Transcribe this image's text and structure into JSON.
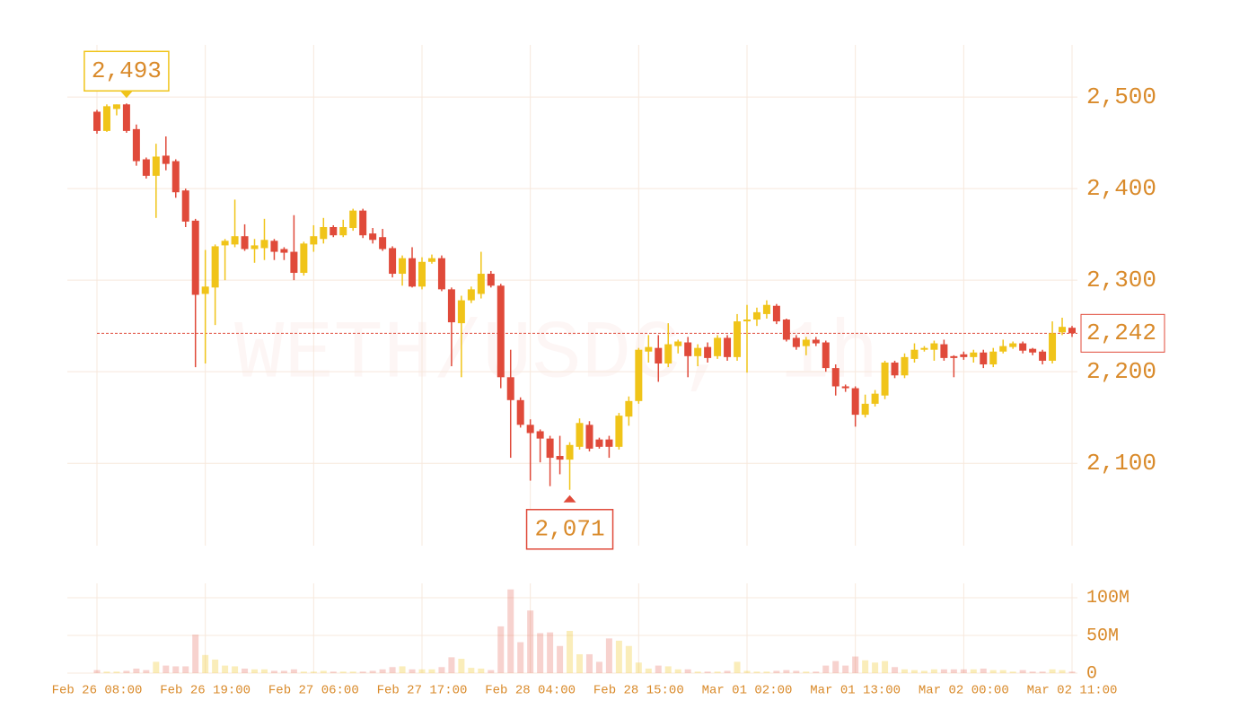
{
  "chart_data": {
    "type": "candlestick",
    "watermark": "WETH/USDC, 1h",
    "up_color": "#f0c419",
    "down_color": "#e04a3a",
    "categories": [
      "Feb 26 08:00",
      null,
      null,
      null,
      null,
      null,
      null,
      null,
      null,
      null,
      null,
      "Feb 26 19:00",
      null,
      null,
      null,
      null,
      null,
      null,
      null,
      null,
      null,
      null,
      "Feb 27 06:00",
      null,
      null,
      null,
      null,
      null,
      null,
      null,
      null,
      null,
      null,
      "Feb 27 17:00",
      null,
      null,
      null,
      null,
      null,
      null,
      null,
      null,
      null,
      null,
      "Feb 28 04:00",
      null,
      null,
      null,
      null,
      null,
      null,
      null,
      null,
      null,
      null,
      "Feb 28 15:00",
      null,
      null,
      null,
      null,
      null,
      null,
      null,
      null,
      null,
      null,
      "Mar 01 02:00",
      null,
      null,
      null,
      null,
      null,
      null,
      null,
      null,
      null,
      null,
      "Mar 01 13:00",
      null,
      null,
      null,
      null,
      null,
      null,
      null,
      null,
      null,
      null,
      "Mar 02 00:00",
      null,
      null,
      null,
      null,
      null,
      null,
      null,
      null,
      null,
      null,
      "Mar 02 11:00"
    ],
    "open": [
      2484,
      2463,
      2487,
      2492,
      2465,
      2432,
      2414,
      2436,
      2430,
      2398,
      2365,
      2285,
      2292,
      2338,
      2339,
      2348,
      2334,
      2335,
      2343,
      2334,
      2331,
      2308,
      2339,
      2345,
      2358,
      2349,
      2357,
      2376,
      2351,
      2347,
      2335,
      2307,
      2324,
      2293,
      2320,
      2324,
      2290,
      2253,
      2278,
      2285,
      2307,
      2294,
      2194,
      2169,
      2142,
      2135,
      2127,
      2108,
      2104,
      2118,
      2142,
      2126,
      2126,
      2118,
      2151,
      2168,
      2222,
      2226,
      2209,
      2228,
      2232,
      2217,
      2227,
      2217,
      2237,
      2216,
      2255,
      2257,
      2263,
      2272,
      2257,
      2237,
      2228,
      2235,
      2232,
      2204,
      2184,
      2182,
      2153,
      2165,
      2174,
      2210,
      2196,
      2214,
      2224,
      2224,
      2230,
      2217,
      2219,
      2216,
      2221,
      2208,
      2222,
      2227,
      2231,
      2225,
      2222,
      2212,
      2243,
      2248
    ],
    "high": [
      2486,
      2492,
      2492,
      2493,
      2470,
      2434,
      2449,
      2457,
      2432,
      2400,
      2367,
      2333,
      2339,
      2345,
      2388,
      2361,
      2345,
      2367,
      2345,
      2336,
      2371,
      2342,
      2360,
      2368,
      2360,
      2366,
      2378,
      2378,
      2357,
      2356,
      2337,
      2327,
      2336,
      2325,
      2328,
      2327,
      2292,
      2283,
      2293,
      2331,
      2310,
      2296,
      2224,
      2172,
      2148,
      2137,
      2130,
      2130,
      2123,
      2149,
      2146,
      2128,
      2130,
      2155,
      2173,
      2226,
      2240,
      2240,
      2253,
      2235,
      2238,
      2230,
      2232,
      2240,
      2240,
      2263,
      2273,
      2270,
      2278,
      2274,
      2258,
      2240,
      2238,
      2238,
      2234,
      2208,
      2186,
      2184,
      2175,
      2180,
      2212,
      2212,
      2220,
      2231,
      2228,
      2234,
      2235,
      2218,
      2222,
      2224,
      2224,
      2226,
      2235,
      2233,
      2233,
      2226,
      2224,
      2255,
      2259,
      2250
    ],
    "low": [
      2460,
      2462,
      2480,
      2461,
      2425,
      2411,
      2368,
      2420,
      2390,
      2358,
      2205,
      2209,
      2251,
      2300,
      2336,
      2332,
      2319,
      2322,
      2322,
      2322,
      2300,
      2305,
      2331,
      2340,
      2347,
      2347,
      2354,
      2346,
      2340,
      2332,
      2303,
      2294,
      2292,
      2290,
      2318,
      2288,
      2206,
      2194,
      2275,
      2280,
      2292,
      2182,
      2106,
      2139,
      2081,
      2101,
      2075,
      2088,
      2071,
      2115,
      2113,
      2116,
      2106,
      2115,
      2141,
      2165,
      2210,
      2189,
      2205,
      2220,
      2194,
      2206,
      2210,
      2214,
      2212,
      2212,
      2199,
      2250,
      2258,
      2252,
      2233,
      2224,
      2218,
      2228,
      2200,
      2174,
      2178,
      2140,
      2150,
      2162,
      2170,
      2193,
      2193,
      2210,
      2222,
      2212,
      2212,
      2194,
      2213,
      2210,
      2204,
      2205,
      2220,
      2225,
      2220,
      2218,
      2208,
      2209,
      2240,
      2238
    ],
    "close": [
      2463,
      2490,
      2492,
      2463,
      2430,
      2414,
      2435,
      2427,
      2396,
      2364,
      2284,
      2293,
      2337,
      2343,
      2348,
      2334,
      2338,
      2344,
      2331,
      2330,
      2308,
      2340,
      2348,
      2358,
      2349,
      2358,
      2376,
      2349,
      2344,
      2334,
      2307,
      2324,
      2293,
      2320,
      2324,
      2290,
      2254,
      2278,
      2290,
      2307,
      2294,
      2194,
      2169,
      2142,
      2133,
      2127,
      2106,
      2104,
      2120,
      2144,
      2116,
      2118,
      2118,
      2152,
      2168,
      2224,
      2227,
      2209,
      2230,
      2233,
      2217,
      2226,
      2215,
      2237,
      2216,
      2255,
      2257,
      2265,
      2273,
      2255,
      2235,
      2227,
      2235,
      2231,
      2204,
      2184,
      2182,
      2153,
      2165,
      2176,
      2210,
      2196,
      2216,
      2224,
      2226,
      2231,
      2215,
      2215,
      2216,
      2221,
      2208,
      2222,
      2228,
      2231,
      2223,
      2221,
      2212,
      2242,
      2249,
      2242
    ],
    "ylim": [
      2010,
      2557
    ],
    "yticks": [
      {
        "value": 2100,
        "label": "2,100"
      },
      {
        "value": 2200,
        "label": "2,200"
      },
      {
        "value": 2300,
        "label": "2,300"
      },
      {
        "value": 2400,
        "label": "2,400"
      },
      {
        "value": 2500,
        "label": "2,500"
      }
    ],
    "annotations": [
      {
        "value": 2493,
        "label": "2,493"
      },
      {
        "value": 2071,
        "label": "2,071"
      }
    ],
    "last_price": {
      "value": 2242,
      "label": "2,242"
    },
    "volume": {
      "values": [
        4000000,
        2000000,
        2000000,
        3000000,
        6000000,
        4000000,
        15000000,
        10000000,
        9000000,
        9000000,
        51000000,
        24000000,
        18000000,
        10000000,
        9000000,
        6000000,
        5000000,
        5000000,
        3000000,
        3000000,
        5000000,
        2000000,
        2000000,
        3000000,
        2000000,
        2000000,
        2000000,
        2000000,
        3000000,
        5000000,
        8000000,
        9000000,
        5000000,
        5000000,
        5000000,
        8000000,
        21000000,
        19000000,
        7000000,
        6000000,
        4000000,
        62000000,
        111000000,
        41000000,
        83000000,
        53000000,
        54000000,
        36000000,
        56000000,
        25000000,
        25000000,
        15000000,
        46000000,
        43000000,
        36000000,
        14000000,
        6000000,
        10000000,
        9000000,
        5000000,
        5000000,
        2000000,
        2000000,
        2000000,
        3000000,
        15000000,
        3000000,
        2000000,
        2000000,
        3000000,
        4000000,
        3000000,
        2000000,
        2000000,
        10000000,
        16000000,
        10000000,
        22000000,
        17000000,
        14000000,
        16000000,
        8000000,
        5000000,
        4000000,
        3000000,
        5000000,
        5000000,
        5000000,
        5000000,
        5000000,
        6000000,
        4000000,
        4000000,
        2000000,
        4000000,
        2000000,
        2000000,
        5000000,
        4000000,
        2000000
      ],
      "ylim": [
        0,
        119000000
      ],
      "yticks": [
        0,
        {
          "value": 50000000,
          "label": "50M"
        },
        {
          "value": 100000000,
          "label": "100M"
        }
      ]
    }
  }
}
